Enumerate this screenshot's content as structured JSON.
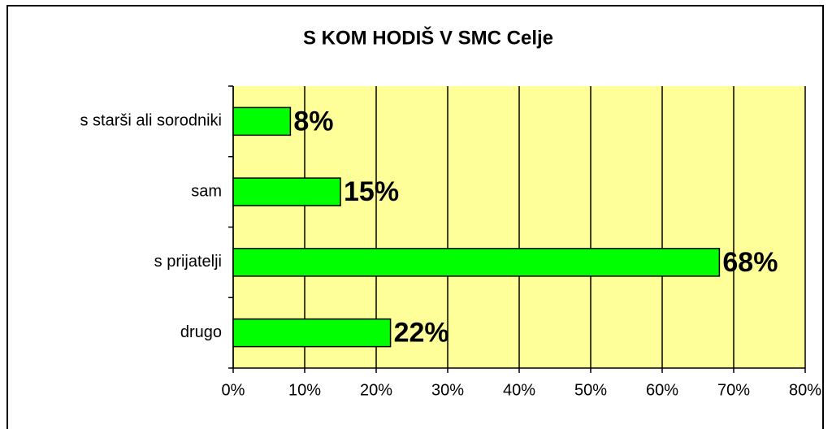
{
  "chart_data": {
    "type": "bar",
    "orientation": "horizontal",
    "title": "S KOM HODIŠ V SMC Celje",
    "categories": [
      "s starši ali sorodniki",
      "sam",
      "s prijatelji",
      "drugo"
    ],
    "values": [
      8,
      15,
      68,
      22
    ],
    "value_labels": [
      "8%",
      "15%",
      "68%",
      "22%"
    ],
    "color": "#00ff00",
    "plot_background": "#ffff99",
    "xlim": [
      0,
      80
    ],
    "xticks": [
      {
        "value": 0,
        "label": "0%"
      },
      {
        "value": 10,
        "label": "10%"
      },
      {
        "value": 20,
        "label": "20%"
      },
      {
        "value": 30,
        "label": "30%"
      },
      {
        "value": 40,
        "label": "40%"
      },
      {
        "value": 50,
        "label": "50%"
      },
      {
        "value": 60,
        "label": "60%"
      },
      {
        "value": 70,
        "label": "70%"
      },
      {
        "value": 80,
        "label": "80%"
      }
    ],
    "grid": true
  }
}
